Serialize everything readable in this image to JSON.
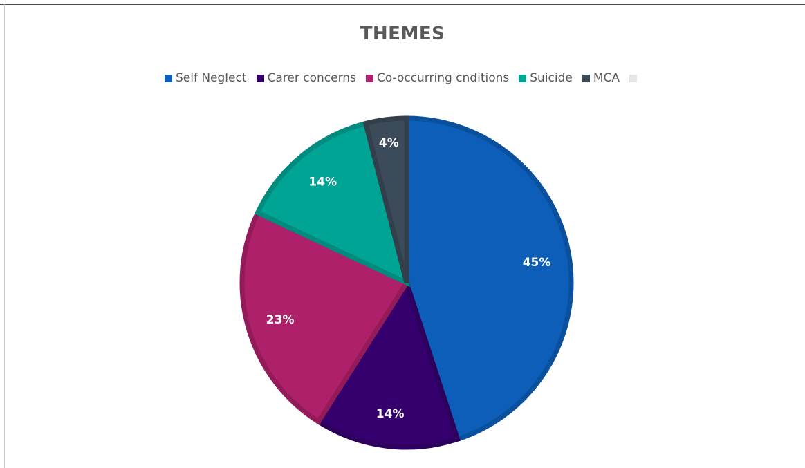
{
  "chart_data": {
    "type": "pie",
    "title": "THEMES",
    "legend_position": "top",
    "slices": [
      {
        "name": "Self Neglect",
        "value": 45,
        "label": "45%",
        "color": "#0D5EB8"
      },
      {
        "name": "Carer concerns",
        "value": 14,
        "label": "14%",
        "color": "#35006E"
      },
      {
        "name": "Co-occurring cnditions",
        "value": 23,
        "label": "23%",
        "color": "#AE2069"
      },
      {
        "name": "Suicide",
        "value": 14,
        "label": "14%",
        "color": "#00A494"
      },
      {
        "name": "MCA",
        "value": 4,
        "label": "4%",
        "color": "#3C4B59"
      },
      {
        "name": "",
        "value": 0,
        "label": "",
        "color": "#E6E6E6"
      }
    ]
  }
}
